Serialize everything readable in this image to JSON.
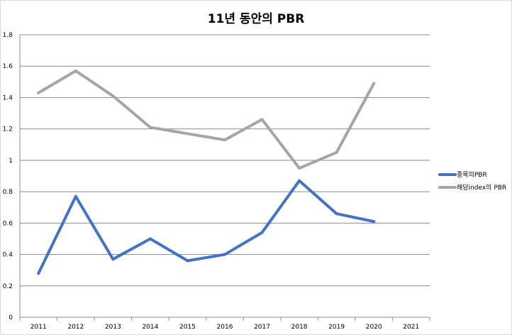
{
  "chart_data": {
    "type": "line",
    "title": "11년 동안의 PBR",
    "xlabel": "",
    "ylabel": "",
    "categories": [
      "2011",
      "2012",
      "2013",
      "2014",
      "2015",
      "2016",
      "2017",
      "2018",
      "2019",
      "2020",
      "2021"
    ],
    "y_ticks": [
      "0",
      "0.2",
      "0.4",
      "0.6",
      "0.8",
      "1",
      "1.2",
      "1.4",
      "1.6",
      "1.8"
    ],
    "ylim": [
      0,
      1.8
    ],
    "grid": "horizontal",
    "legend_position": "right",
    "series": [
      {
        "name": "종목의PBR",
        "color": "#4472c4",
        "values": [
          0.28,
          0.77,
          0.37,
          0.5,
          0.36,
          0.4,
          0.54,
          0.87,
          0.66,
          0.61,
          null
        ]
      },
      {
        "name": "해당index의 PBR",
        "color": "#a5a5a5",
        "values": [
          1.43,
          1.57,
          1.41,
          1.21,
          1.17,
          1.13,
          1.26,
          0.95,
          1.05,
          1.49,
          null
        ]
      }
    ]
  }
}
